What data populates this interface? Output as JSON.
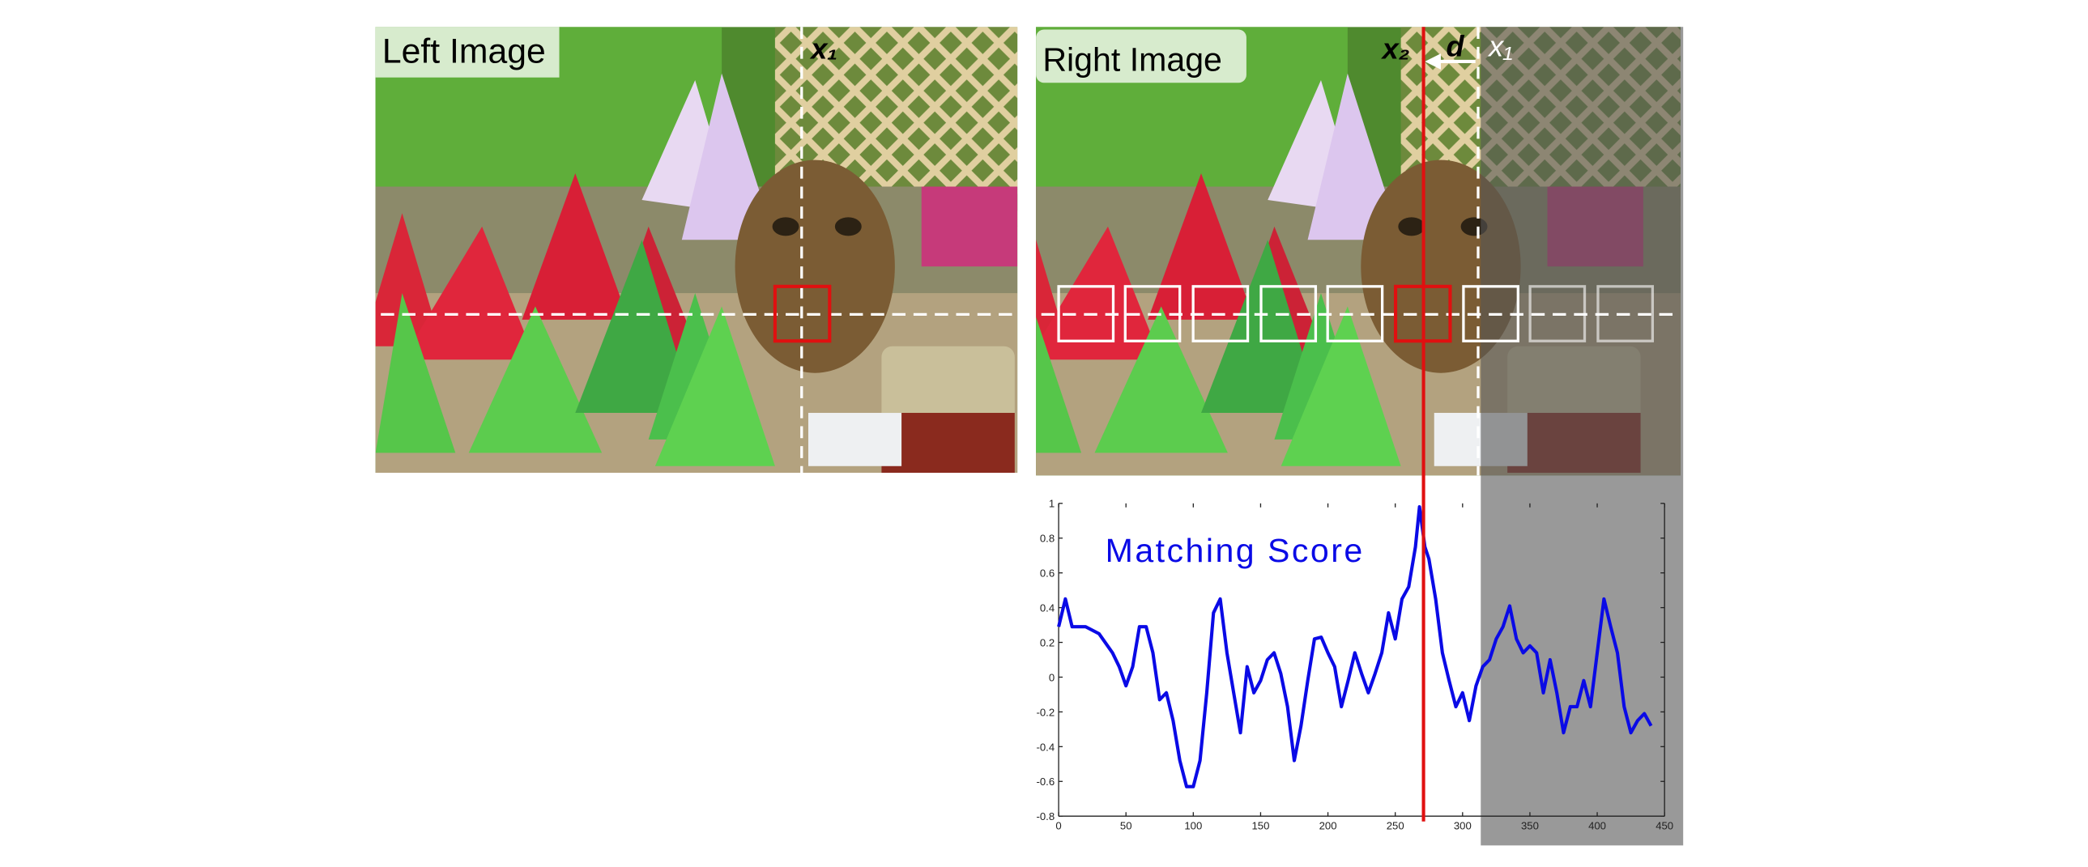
{
  "figure": {
    "left_image": {
      "label": "Left Image",
      "x_label": "x₁"
    },
    "right_image": {
      "label": "Right Image",
      "x2_label": "x₂",
      "d_label": "d",
      "x1_label": "x₁"
    }
  },
  "chart_data": {
    "type": "line",
    "title": "Matching Score",
    "color": "#0a0ae6",
    "x": [
      0,
      5,
      10,
      20,
      30,
      40,
      45,
      50,
      55,
      60,
      65,
      70,
      75,
      80,
      85,
      90,
      95,
      100,
      105,
      110,
      115,
      120,
      125,
      130,
      135,
      140,
      145,
      150,
      155,
      160,
      165,
      170,
      175,
      180,
      185,
      190,
      195,
      200,
      205,
      210,
      215,
      220,
      225,
      230,
      235,
      240,
      245,
      250,
      255,
      260,
      265,
      268,
      272,
      275,
      280,
      285,
      290,
      295,
      300,
      305,
      310,
      315,
      320,
      325,
      330,
      335,
      340,
      345,
      350,
      355,
      360,
      365,
      370,
      375,
      380,
      385,
      390,
      395,
      400,
      405,
      410,
      415,
      420,
      425,
      430,
      435,
      440
    ],
    "values": [
      0.29,
      0.45,
      0.29,
      0.29,
      0.25,
      0.14,
      0.06,
      -0.05,
      0.06,
      0.29,
      0.29,
      0.14,
      -0.13,
      -0.09,
      -0.25,
      -0.48,
      -0.63,
      -0.63,
      -0.48,
      -0.09,
      0.37,
      0.45,
      0.14,
      -0.09,
      -0.32,
      0.06,
      -0.09,
      -0.02,
      0.1,
      0.14,
      0.02,
      -0.17,
      -0.48,
      -0.28,
      -0.02,
      0.22,
      0.23,
      0.14,
      0.06,
      -0.17,
      -0.02,
      0.14,
      0.02,
      -0.09,
      0.02,
      0.14,
      0.37,
      0.22,
      0.45,
      0.52,
      0.75,
      0.98,
      0.75,
      0.68,
      0.45,
      0.14,
      -0.02,
      -0.17,
      -0.09,
      -0.25,
      -0.05,
      0.06,
      0.1,
      0.22,
      0.29,
      0.41,
      0.22,
      0.14,
      0.18,
      0.14,
      -0.09,
      0.1,
      -0.09,
      -0.32,
      -0.17,
      -0.17,
      -0.02,
      -0.17,
      0.14,
      0.45,
      0.29,
      0.14,
      -0.17,
      -0.32,
      -0.25,
      -0.21,
      -0.28
    ],
    "xlim": [
      0,
      450
    ],
    "ylim": [
      -0.8,
      1
    ],
    "xticks": [
      0,
      50,
      100,
      150,
      200,
      250,
      300,
      350,
      400,
      450
    ],
    "yticks": [
      -0.8,
      -0.6,
      -0.4,
      -0.2,
      0,
      0.2,
      0.4,
      0.6,
      0.8,
      1
    ]
  }
}
